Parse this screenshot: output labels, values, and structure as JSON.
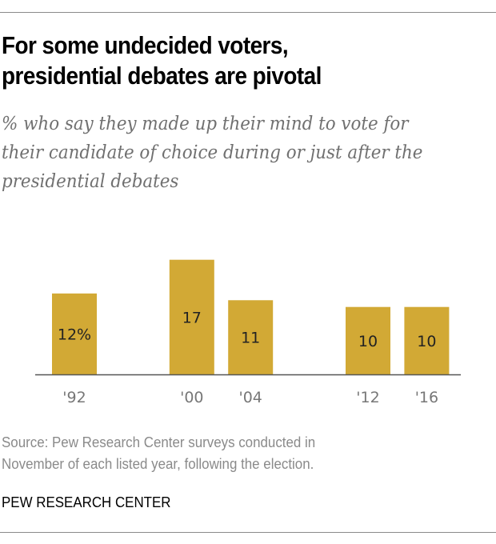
{
  "title": "For some undecided voters, presidential debates are pivotal",
  "title_lines": [
    "For some undecided voters,",
    "presidential debates are pivotal"
  ],
  "subtitle_lines": [
    "% who say they made up their mind to vote for",
    "their candidate of choice during or just after the",
    "presidential debates"
  ],
  "source_lines": [
    "Source: Pew Research Center surveys conducted in",
    "November of each listed year, following the election."
  ],
  "brand": "PEW RESEARCH CENTER",
  "colors": {
    "bar": "#d2a935",
    "axis": "#555555",
    "label": "#222222",
    "tick": "#777777"
  },
  "chart_data": {
    "type": "bar",
    "title": "For some undecided voters, presidential debates are pivotal",
    "xlabel": "",
    "ylabel": "",
    "categories": [
      "'92",
      "'00",
      "'04",
      "'12",
      "'16"
    ],
    "years": [
      1992,
      2000,
      2004,
      2012,
      2016
    ],
    "values": [
      12,
      17,
      11,
      10,
      10
    ],
    "data_labels": [
      "12%",
      "17",
      "11",
      "10",
      "10"
    ],
    "ylim": [
      0,
      17
    ],
    "grid": false,
    "legend": "none"
  }
}
